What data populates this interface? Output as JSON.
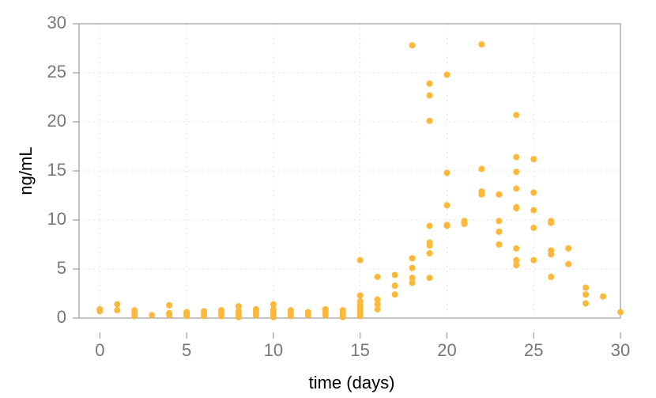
{
  "chart_data": {
    "type": "scatter",
    "x_label": "time (days)",
    "y_label": "ng/mL",
    "x": [
      0,
      0,
      1,
      1,
      2,
      2,
      2,
      2,
      3,
      4,
      4,
      4,
      5,
      5,
      5,
      6,
      6,
      6,
      7,
      7,
      7,
      8,
      8,
      8,
      8,
      9,
      9,
      9,
      10,
      10,
      10,
      10,
      10,
      11,
      11,
      11,
      12,
      12,
      13,
      13,
      13,
      14,
      14,
      14,
      14,
      15,
      15,
      15,
      15,
      15,
      15,
      15,
      15,
      16,
      16,
      16,
      16,
      17,
      17,
      17,
      18,
      18,
      18,
      18,
      18,
      19,
      19,
      19,
      19,
      19,
      19,
      19,
      19,
      20,
      20,
      20,
      20,
      20,
      21,
      21,
      22,
      22,
      22,
      22,
      23,
      23,
      23,
      23,
      24,
      24,
      24,
      24,
      24,
      24,
      24,
      24,
      24,
      25,
      25,
      25,
      25,
      25,
      26,
      26,
      26,
      26,
      26,
      27,
      27,
      28,
      28,
      28,
      29,
      30
    ],
    "values": [
      0.9,
      0.7,
      1.4,
      0.8,
      0.8,
      0.5,
      0.3,
      0.2,
      0.3,
      1.3,
      0.5,
      0.3,
      0.6,
      0.4,
      0.2,
      0.7,
      0.5,
      0.2,
      0.8,
      0.5,
      0.2,
      1.2,
      0.7,
      0.4,
      0.1,
      0.9,
      0.6,
      0.3,
      1.4,
      0.9,
      0.6,
      0.3,
      0.1,
      0.8,
      0.5,
      0.2,
      0.6,
      0.3,
      0.9,
      0.6,
      0.3,
      0.8,
      0.5,
      0.2,
      0.1,
      5.9,
      2.3,
      1.7,
      1.3,
      1.0,
      0.7,
      0.4,
      0.2,
      4.2,
      1.9,
      1.4,
      0.9,
      4.4,
      3.3,
      2.4,
      27.8,
      6.1,
      5.1,
      4.1,
      3.6,
      23.9,
      22.7,
      20.1,
      9.4,
      7.7,
      7.4,
      6.6,
      4.1,
      24.8,
      14.8,
      11.5,
      9.5,
      9.4,
      9.9,
      9.6,
      27.9,
      15.2,
      12.9,
      12.6,
      12.6,
      9.9,
      8.8,
      7.5,
      20.7,
      16.4,
      14.9,
      13.2,
      11.3,
      11.2,
      7.1,
      5.9,
      5.4,
      16.2,
      12.8,
      11.0,
      9.2,
      5.9,
      9.9,
      9.7,
      6.9,
      6.5,
      4.2,
      7.1,
      5.5,
      3.1,
      2.4,
      1.5,
      2.2,
      0.6
    ],
    "color": "#fbb83a",
    "xlim": [
      -1.2,
      30
    ],
    "xticks": [
      0,
      5,
      10,
      15,
      20,
      25,
      30
    ],
    "ylim": [
      0,
      30
    ],
    "yticks": [
      0,
      5,
      10,
      15,
      20,
      25,
      30
    ],
    "grid": true
  }
}
